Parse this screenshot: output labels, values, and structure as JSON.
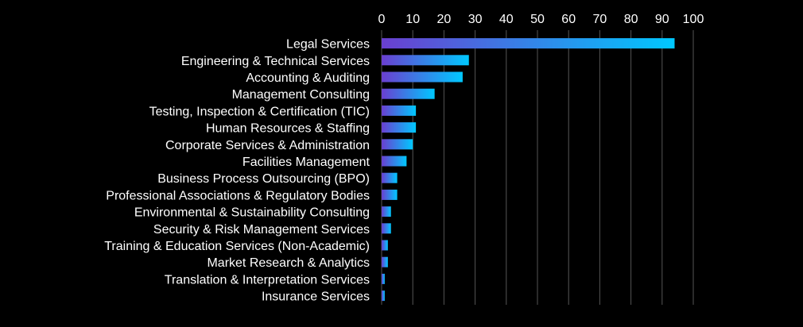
{
  "chart_data": {
    "type": "bar",
    "orientation": "horizontal",
    "title": "",
    "xlabel": "",
    "ylabel": "",
    "xlim": [
      0,
      100
    ],
    "ticks": [
      0,
      10,
      20,
      30,
      40,
      50,
      60,
      70,
      80,
      90,
      100
    ],
    "tick_position": "top",
    "grid": true,
    "legend": "none",
    "categories": [
      "Legal Services",
      "Engineering & Technical Services",
      "Accounting & Auditing",
      "Management Consulting",
      "Testing, Inspection & Certification (TIC)",
      "Human Resources & Staffing",
      "Corporate Services & Administration",
      "Facilities Management",
      "Business Process Outsourcing (BPO)",
      "Professional Associations & Regulatory Bodies",
      "Environmental & Sustainability Consulting",
      "Security & Risk Management Services",
      "Training & Education Services (Non-Academic)",
      "Market Research & Analytics",
      "Translation & Interpretation Services",
      "Insurance Services"
    ],
    "values": [
      94,
      28,
      26,
      17,
      11,
      11,
      10,
      8,
      5,
      5,
      3,
      3,
      2,
      2,
      1,
      1
    ],
    "colors": {
      "background": "#000000",
      "text": "#ffffff",
      "grid": "#555555",
      "bar_gradient_start": "#6a3fd0",
      "bar_gradient_end": "#00c8ff"
    }
  }
}
